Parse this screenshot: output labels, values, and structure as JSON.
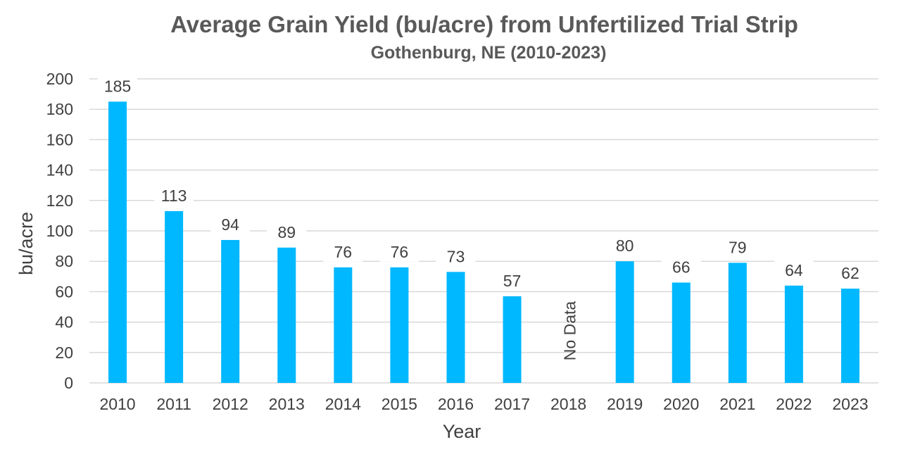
{
  "chart_data": {
    "type": "bar",
    "title": "Average Grain Yield (bu/acre) from Unfertilized Trial Strip",
    "subtitle": "Gothenburg, NE (2010-2023)",
    "xlabel": "Year",
    "ylabel": "bu/acre",
    "ylim": [
      0,
      200
    ],
    "yticks": [
      0,
      20,
      40,
      60,
      80,
      100,
      120,
      140,
      160,
      180,
      200
    ],
    "grid": true,
    "categories": [
      "2010",
      "2011",
      "2012",
      "2013",
      "2014",
      "2015",
      "2016",
      "2017",
      "2018",
      "2019",
      "2020",
      "2021",
      "2022",
      "2023"
    ],
    "values": [
      185,
      113,
      94,
      89,
      76,
      76,
      73,
      57,
      null,
      80,
      66,
      79,
      64,
      62
    ],
    "annotations": [
      {
        "category": "2018",
        "text": "No Data"
      }
    ],
    "bar_color": "#00B8FF",
    "grid_color": "#D9D9D9",
    "text_color": "#404040",
    "title_color": "#595959"
  }
}
